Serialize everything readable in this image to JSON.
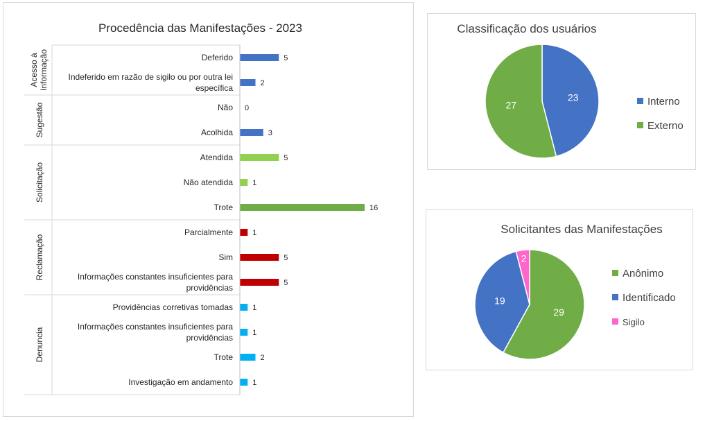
{
  "chart_data": [
    {
      "type": "bar",
      "orientation": "horizontal",
      "title": "Procedência das Manifestações - 2023",
      "groups": [
        {
          "name": "Acesso à Informação",
          "label_lines": [
            "Acesso à",
            "Informação"
          ],
          "items": [
            {
              "label": "Deferido",
              "value": 5,
              "color": "#4472C4"
            },
            {
              "label": "Indeferido em razão de sigilo ou por outra lei específica",
              "label_lines": [
                "Indeferido em razão de sigilo ou por outra lei",
                "específica"
              ],
              "value": 2,
              "color": "#4472C4"
            }
          ]
        },
        {
          "name": "Sugestão",
          "label_lines": [
            "Sugestão"
          ],
          "items": [
            {
              "label": "Não",
              "value": 0,
              "color": "#4472C4"
            },
            {
              "label": "Acolhida",
              "value": 3,
              "color": "#4472C4"
            }
          ]
        },
        {
          "name": "Solicitação",
          "label_lines": [
            "Solicitação"
          ],
          "items": [
            {
              "label": "Atendida",
              "value": 5,
              "color": "#92D050"
            },
            {
              "label": "Não atendida",
              "value": 1,
              "color": "#92D050"
            },
            {
              "label": "Trote",
              "value": 16,
              "color": "#70AD47"
            }
          ]
        },
        {
          "name": "Reclamação",
          "label_lines": [
            "Reclamação"
          ],
          "items": [
            {
              "label": "Parcialmente",
              "value": 1,
              "color": "#C00000"
            },
            {
              "label": "Sim",
              "value": 5,
              "color": "#C00000"
            },
            {
              "label": "Informações constantes insuficientes para providências",
              "label_lines": [
                "Informações constantes  insuficientes para",
                "providências"
              ],
              "value": 5,
              "color": "#C00000"
            }
          ]
        },
        {
          "name": "Denuncia",
          "label_lines": [
            "Denuncia"
          ],
          "items": [
            {
              "label": "Providências corretivas tomadas",
              "value": 1,
              "color": "#00B0F0"
            },
            {
              "label": "Informações constantes insuficientes para providências",
              "label_lines": [
                "Informações constantes  insuficientes para",
                "providências"
              ],
              "value": 1,
              "color": "#00B0F0"
            },
            {
              "label": "Trote",
              "value": 2,
              "color": "#00B0F0"
            },
            {
              "label": "Investigação em andamento",
              "value": 1,
              "color": "#00B0F0"
            }
          ]
        }
      ],
      "xlim": [
        0,
        16
      ],
      "grid": false,
      "legend": "none"
    },
    {
      "type": "pie",
      "title": "Classificação dos usuários",
      "slices": [
        {
          "label": "Interno",
          "value": 23,
          "color": "#4472C4"
        },
        {
          "label": "Externo",
          "value": 27,
          "color": "#70AD47"
        }
      ],
      "legend": "right"
    },
    {
      "type": "pie",
      "title": "Solicitantes das Manifestações",
      "slices": [
        {
          "label": "Anônimo",
          "value": 29,
          "color": "#70AD47"
        },
        {
          "label": "Identificado",
          "value": 19,
          "color": "#4472C4"
        },
        {
          "label": "Sigilo",
          "value": 2,
          "color": "#FF66CC"
        }
      ],
      "legend": "right"
    }
  ]
}
